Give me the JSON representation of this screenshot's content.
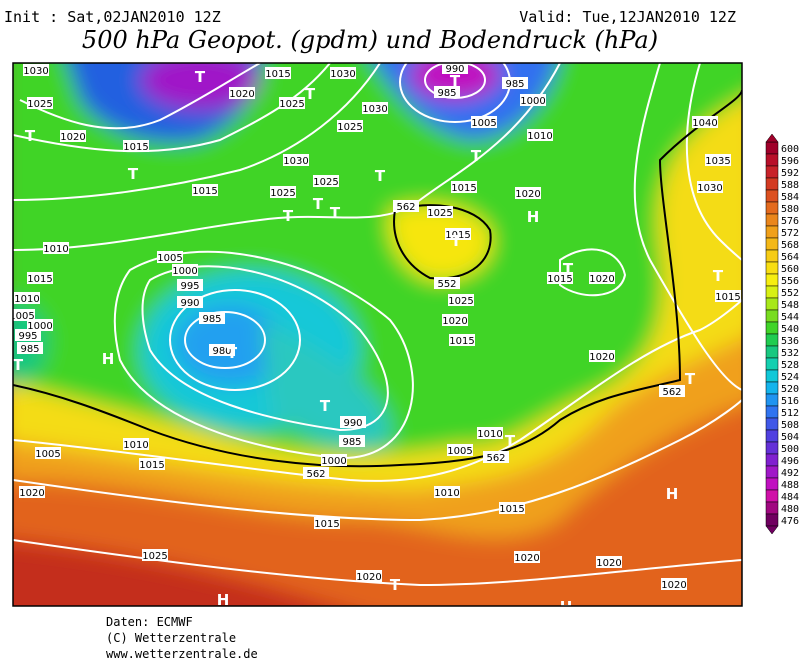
{
  "header": {
    "init": "Init : Sat,02JAN2010 12Z",
    "valid": "Valid: Tue,12JAN2010 12Z",
    "title": "500 hPa Geopot. (gpdm) und Bodendruck (hPa)"
  },
  "map_labels": [
    "1030",
    "1015",
    "1030",
    "990",
    "985",
    "985",
    "1000",
    "1020",
    "1025",
    "1025",
    "1030",
    "1025",
    "1005",
    "1010",
    "1040",
    "1020",
    "1015",
    "1030",
    "1035",
    "1025",
    "1015",
    "1020",
    "1030",
    "1015",
    "1025",
    "562",
    "1025",
    "1015",
    "1010",
    "1005",
    "1000",
    "995",
    "1015",
    "990",
    "985",
    "980",
    "1015",
    "1020",
    "1010",
    "1005",
    "1000",
    "995",
    "985",
    "552",
    "1025",
    "1020",
    "1015",
    "1020",
    "562",
    "1010",
    "1005",
    "990",
    "985",
    "1000",
    "1010",
    "1005",
    "562",
    "562",
    "1015",
    "1020",
    "1010",
    "1015",
    "1015",
    "1020",
    "1025",
    "1020",
    "1020",
    "1020",
    "1015",
    "T",
    "T",
    "T",
    "T",
    "T",
    "T",
    "T",
    "T",
    "T",
    "T",
    "T",
    "T",
    "T",
    "T",
    "T",
    "T",
    "T",
    "T",
    "T",
    "H",
    "H",
    "H",
    "H",
    "H"
  ],
  "colorbar": {
    "values": [
      600,
      596,
      592,
      588,
      584,
      580,
      576,
      572,
      568,
      564,
      560,
      556,
      552,
      548,
      544,
      540,
      536,
      532,
      528,
      524,
      520,
      516,
      512,
      508,
      504,
      500,
      496,
      492,
      488,
      484,
      480,
      476
    ],
    "colors": [
      "#a0002a",
      "#b80f2a",
      "#c8222a",
      "#d33a22",
      "#dc5020",
      "#e46a1e",
      "#ea861c",
      "#f0a01a",
      "#f4b818",
      "#f6cc16",
      "#f8de12",
      "#f6ee10",
      "#d8f014",
      "#a8e81a",
      "#78dc20",
      "#40d428",
      "#20cc50",
      "#18c880",
      "#14d0b0",
      "#10c8d8",
      "#14b4ec",
      "#2094f0",
      "#3074f0",
      "#4058e8",
      "#5040e0",
      "#6430d8",
      "#8020d0",
      "#a018c8",
      "#c010c0",
      "#d010a8",
      "#a00880",
      "#700060"
    ]
  },
  "footer": {
    "source": "Daten: ECMWF",
    "copyright": "(C) Wetterzentrale",
    "url": "www.wetterzentrale.de"
  }
}
